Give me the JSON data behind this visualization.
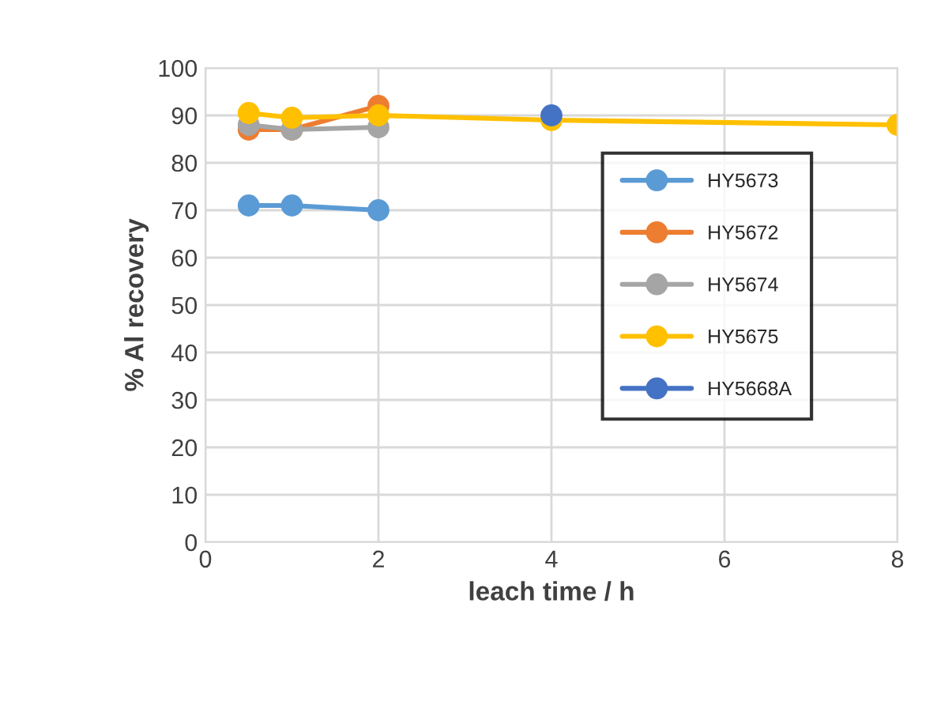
{
  "chart_data": {
    "type": "line",
    "xlabel": "leach time / h",
    "ylabel": "% Al recovery",
    "xlim": [
      0,
      8
    ],
    "xticks": [
      0,
      2,
      4,
      6,
      8
    ],
    "ylim": [
      0,
      100
    ],
    "yticks": [
      0,
      10,
      20,
      30,
      40,
      50,
      60,
      70,
      80,
      90,
      100
    ],
    "grid": true,
    "legend": "right",
    "marker": "circle",
    "line_style": "solid",
    "series": [
      {
        "name": "HY5673",
        "color": "#5b9bd5",
        "x": [
          0.5,
          1,
          2
        ],
        "values": [
          71,
          71,
          70
        ]
      },
      {
        "name": "HY5672",
        "color": "#ed7d31",
        "x": [
          0.5,
          1,
          2
        ],
        "values": [
          87,
          87,
          92
        ]
      },
      {
        "name": "HY5674",
        "color": "#a5a5a5",
        "x": [
          0.5,
          1,
          2
        ],
        "values": [
          88,
          87,
          87.5
        ]
      },
      {
        "name": "HY5675",
        "color": "#ffc000",
        "x": [
          0.5,
          1,
          2,
          4,
          8
        ],
        "values": [
          90.5,
          89.5,
          90,
          89,
          88
        ]
      },
      {
        "name": "HY5668A",
        "color": "#4472c4",
        "x": [
          4
        ],
        "values": [
          90
        ]
      }
    ]
  }
}
